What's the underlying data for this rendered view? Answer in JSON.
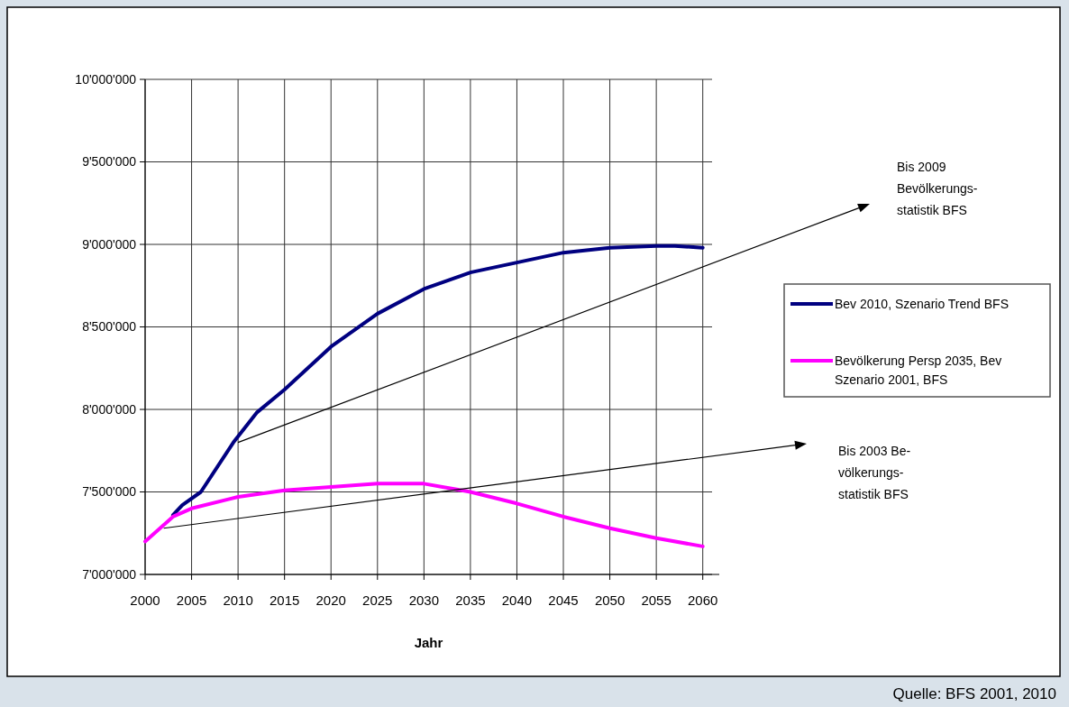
{
  "chart_data": {
    "type": "line",
    "xlabel": "Jahr",
    "xlim": [
      2000,
      2061
    ],
    "xticks": [
      2000,
      2005,
      2010,
      2015,
      2020,
      2025,
      2030,
      2035,
      2040,
      2045,
      2050,
      2055,
      2060
    ],
    "ylim": [
      7000000,
      10000000
    ],
    "yticks": [
      {
        "value": 7000000,
        "label": "7'000'000"
      },
      {
        "value": 7500000,
        "label": "7'500'000"
      },
      {
        "value": 8000000,
        "label": "8'000'000"
      },
      {
        "value": 8500000,
        "label": "8'500'000"
      },
      {
        "value": 9000000,
        "label": "9'000'000"
      },
      {
        "value": 9500000,
        "label": "9'500'000"
      },
      {
        "value": 10000000,
        "label": "10'000'000"
      }
    ],
    "grid": true,
    "legend": "right",
    "line_style": "solid",
    "series": [
      {
        "name": "Bev 2010, Szenario Trend BFS",
        "color": "#000080",
        "x": [
          2003,
          2004,
          2006,
          2009.5,
          2012,
          2015,
          2020,
          2025,
          2030,
          2035,
          2040,
          2045,
          2050,
          2055,
          2057,
          2060
        ],
        "values": [
          7360000,
          7420000,
          7500000,
          7800000,
          7980000,
          8120000,
          8380000,
          8580000,
          8730000,
          8830000,
          8890000,
          8950000,
          8980000,
          8990000,
          8990000,
          8980000
        ]
      },
      {
        "name": "Bevölkerung Persp 2035, Bev Szenario 2001, BFS",
        "color": "#ff00ff",
        "x": [
          2000,
          2003,
          2005,
          2010,
          2015,
          2020,
          2025,
          2030,
          2035,
          2040,
          2045,
          2050,
          2055,
          2060
        ],
        "values": [
          7200000,
          7350000,
          7400000,
          7470000,
          7510000,
          7530000,
          7550000,
          7550000,
          7500000,
          7430000,
          7350000,
          7280000,
          7220000,
          7170000
        ]
      }
    ],
    "annotations": [
      "Bis 2009\nBevölkerungs-\nstatistik BFS",
      "Bis 2003  Be-\nvölkerungs-\nstatistik BFS",
      "Quelle: BFS 2001, 2010"
    ]
  }
}
